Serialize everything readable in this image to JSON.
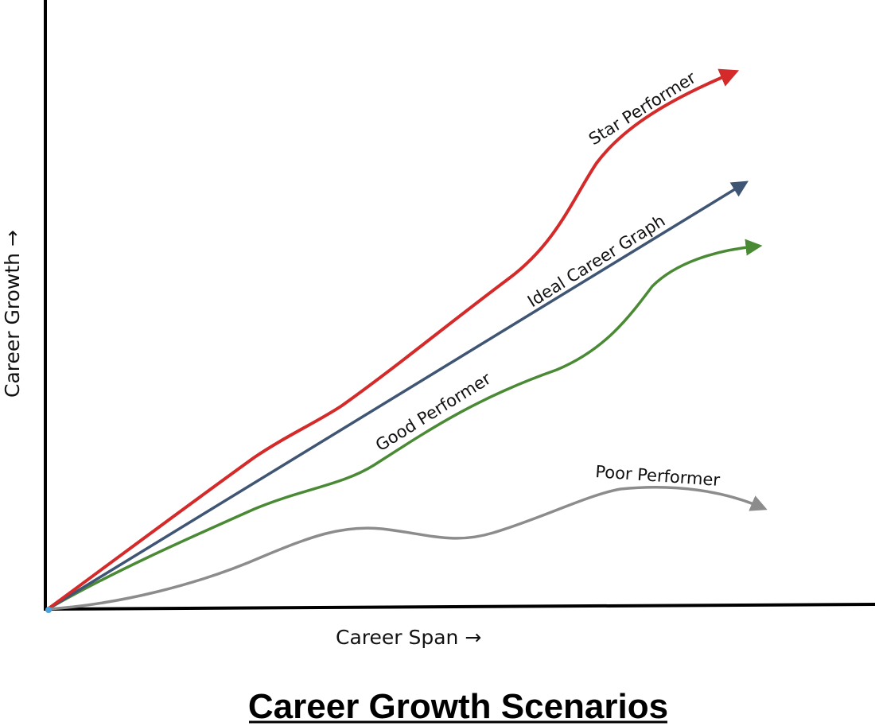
{
  "title": "Career Growth Scenarios",
  "x_axis_label": "Career Span →",
  "y_axis_label": "Career Growth →",
  "curves": [
    {
      "id": "star",
      "label": "Star Performer",
      "color": "#d42a2a"
    },
    {
      "id": "ideal",
      "label": "Ideal Career Graph",
      "color": "#3f5574"
    },
    {
      "id": "good",
      "label": "Good Performer",
      "color": "#4a8a35"
    },
    {
      "id": "poor",
      "label": "Poor Performer",
      "color": "#8c8c8c"
    }
  ],
  "colors": {
    "axis": "#000000",
    "origin": "#4aa3df"
  }
}
